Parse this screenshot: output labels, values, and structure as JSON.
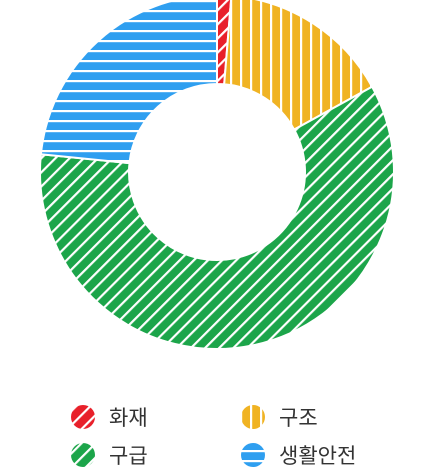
{
  "chart_data": {
    "type": "pie",
    "donut": true,
    "categories": [
      "화재",
      "구조",
      "구급",
      "생활안전"
    ],
    "values": [
      1.3,
      15.7,
      59.6,
      23.4
    ],
    "colors": [
      "#e8202a",
      "#f0b323",
      "#1ca54a",
      "#2f9ff0"
    ],
    "patterns": [
      "diagonal-right",
      "vertical",
      "diagonal-right",
      "horizontal"
    ],
    "legend": {
      "position": "bottom",
      "items": [
        "화재",
        "구조",
        "구급",
        "생활안전"
      ]
    }
  }
}
